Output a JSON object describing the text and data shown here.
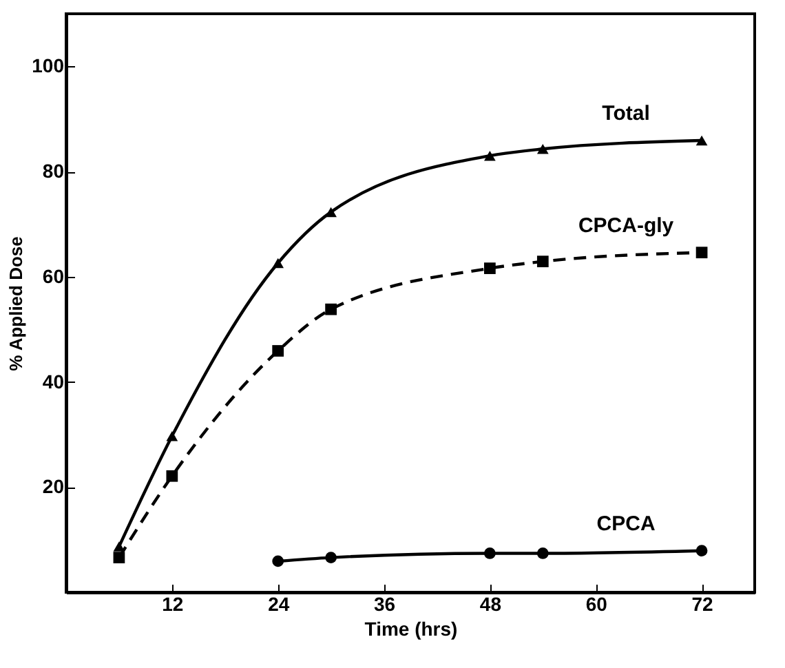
{
  "chart_data": {
    "type": "line",
    "xlabel": "Time (hrs)",
    "ylabel": "% Applied Dose",
    "xlim": [
      0,
      78
    ],
    "xticks": [
      12,
      24,
      36,
      48,
      60,
      72
    ],
    "ylim": [
      0,
      110
    ],
    "yticks": [
      20,
      40,
      60,
      80,
      100
    ],
    "grid": false,
    "series": [
      {
        "name": "Total",
        "color": "#000000",
        "marker": "triangle",
        "line_style": "solid",
        "x": [
          6,
          12,
          24,
          30,
          48,
          54,
          72
        ],
        "values": [
          8.7,
          29.7,
          62.6,
          72.3,
          83,
          84.3,
          85.9
        ]
      },
      {
        "name": "CPCA-gly",
        "color": "#000000",
        "marker": "square",
        "line_style": "dashed",
        "x": [
          6,
          12,
          24,
          30,
          48,
          54,
          72
        ],
        "values": [
          6.6,
          22.1,
          45.9,
          53.8,
          61.6,
          62.9,
          64.6
        ]
      },
      {
        "name": "CPCA",
        "color": "#000000",
        "marker": "circle",
        "line_style": "solid",
        "x": [
          24,
          30,
          48,
          54,
          72
        ],
        "values": [
          5.9,
          6.6,
          7.4,
          7.4,
          7.9
        ]
      }
    ]
  }
}
